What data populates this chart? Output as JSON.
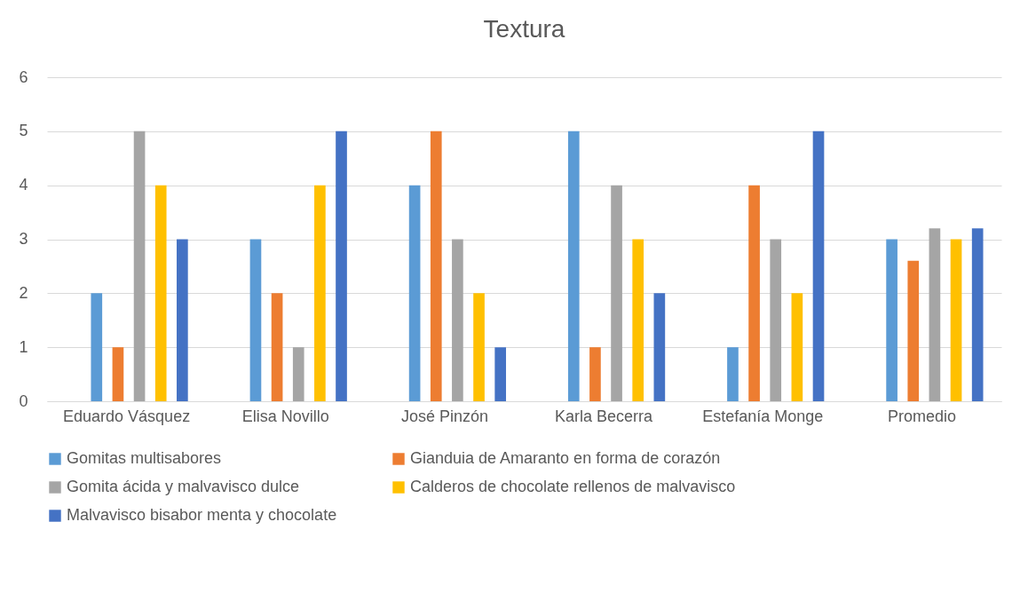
{
  "chart_data": {
    "type": "bar",
    "title": "Textura",
    "categories": [
      "Eduardo Vásquez",
      "Elisa Novillo",
      "José Pinzón",
      "Karla Becerra",
      "Estefanía Monge",
      "Promedio"
    ],
    "series": [
      {
        "name": "Gomitas multisabores",
        "color": "#5b9bd5",
        "values": [
          2,
          3,
          4,
          5,
          1,
          3
        ]
      },
      {
        "name": "Gianduia de Amaranto en forma de corazón",
        "color": "#ed7d31",
        "values": [
          1,
          2,
          5,
          1,
          4,
          2.6
        ]
      },
      {
        "name": "Gomita ácida y malvavisco dulce",
        "color": "#a5a5a5",
        "values": [
          5,
          1,
          3,
          4,
          3,
          3.2
        ]
      },
      {
        "name": "Calderos de chocolate rellenos de malvavisco",
        "color": "#ffc000",
        "values": [
          4,
          4,
          2,
          3,
          2,
          3
        ]
      },
      {
        "name": "Malvavisco bisabor menta y chocolate",
        "color": "#4472c4",
        "values": [
          3,
          5,
          1,
          2,
          5,
          3.2
        ]
      }
    ],
    "ylim": [
      0,
      6
    ],
    "yticks": [
      0,
      1,
      2,
      3,
      4,
      5,
      6
    ],
    "grid": "y",
    "legend": "bottom"
  }
}
